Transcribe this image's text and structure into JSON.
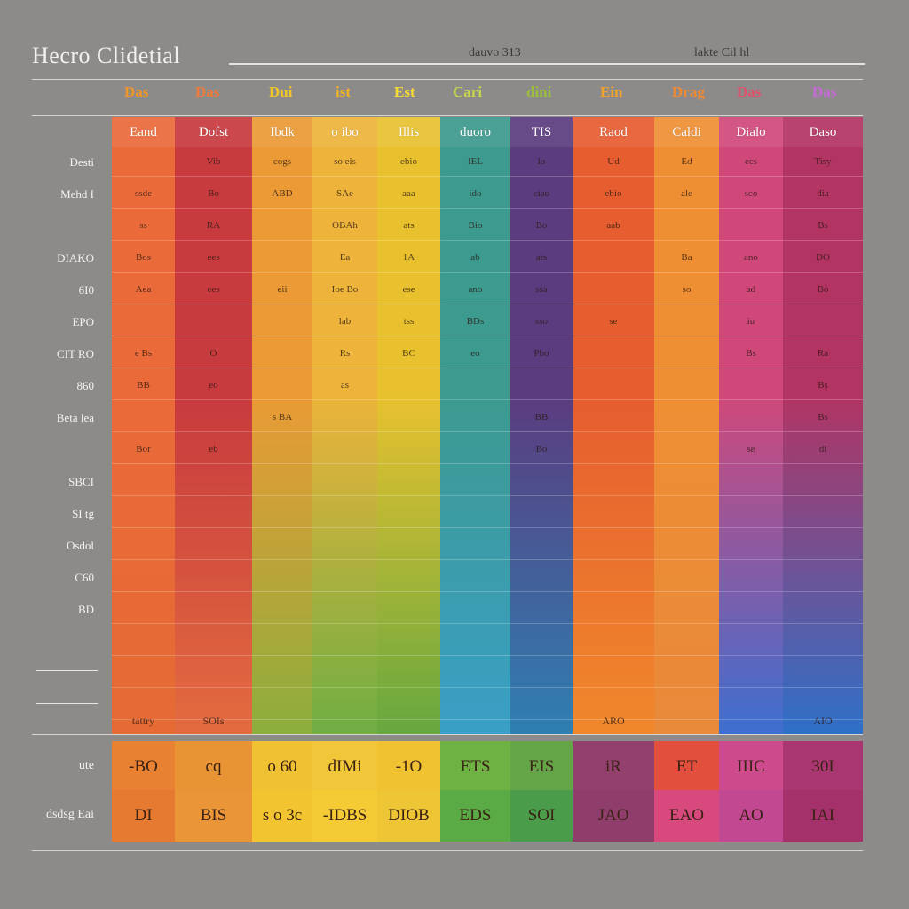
{
  "chart_data": {
    "type": "table",
    "title": "Hecro Clidetial",
    "subtitle_left": "dauvo 313",
    "subtitle_right": "lakte Cil hl",
    "top_labels": [
      {
        "text": "Das",
        "color": "#f0962a"
      },
      {
        "text": "Das",
        "color": "#f07a3a"
      },
      {
        "text": "Dui",
        "color": "#f3c52b"
      },
      {
        "text": "ist",
        "color": "#f0b228"
      },
      {
        "text": "Est",
        "color": "#f6d936"
      },
      {
        "text": "Cari",
        "color": "#c8d64a"
      },
      {
        "text": "dini",
        "color": "#9bbf3a"
      },
      {
        "text": "Ein",
        "color": "#f1a12e"
      },
      {
        "text": "Drag",
        "color": "#ef8a34"
      },
      {
        "text": "Das",
        "color": "#e0506a"
      },
      {
        "text": "Das",
        "color": "#c66ad8"
      }
    ],
    "columns": [
      {
        "label": "Eand",
        "color": "#ea6a3a",
        "color2": "#e56a33"
      },
      {
        "label": "Dofst",
        "color": "#c73a3e",
        "color2": "#e36b3f"
      },
      {
        "label": "Ibdk",
        "color": "#eb9a35",
        "color2": "#8cae3c"
      },
      {
        "label": "o ibo",
        "color": "#edb33a",
        "color2": "#6fae43"
      },
      {
        "label": "Illis",
        "color": "#e9c12f",
        "color2": "#66a83f"
      },
      {
        "label": "duoro",
        "color": "#3d9a8f",
        "color2": "#3a9fc6"
      },
      {
        "label": "TIS",
        "color": "#5b3c7f",
        "color2": "#2f7fb2"
      },
      {
        "label": "Raod",
        "color": "#e65d30",
        "color2": "#f0882b"
      },
      {
        "label": "Caldi",
        "color": "#ee8f34",
        "color2": "#e9893a"
      },
      {
        "label": "Dialo",
        "color": "#d0487a",
        "color2": "#3d6fd0"
      },
      {
        "label": "Daso",
        "color": "#b23462",
        "color2": "#2e70c8"
      }
    ],
    "row_labels": [
      "Desti",
      "Mehd I",
      "",
      "DIAKO",
      "6I0",
      "EPO",
      "CIT RO",
      "860",
      "Beta lea",
      "",
      "SBCI",
      "SI tg",
      "Osdol",
      "C60",
      "BD",
      "",
      "",
      ""
    ],
    "cells": [
      [
        "",
        "Vib",
        "cogs",
        "so eis",
        "ebio",
        "IEL",
        "lo",
        "Ud",
        "Ed",
        "ecs",
        "Tisy"
      ],
      [
        "ssde",
        "Bo",
        "ABD",
        "SAe",
        "aaa",
        "ido",
        "ciao",
        "ebio",
        "ale",
        "sco",
        "dia"
      ],
      [
        "ss",
        "RA",
        "",
        "OBAh",
        "ats",
        "Bio",
        "Bo",
        "aab",
        "",
        "",
        "Bs"
      ],
      [
        "Bos",
        "ees",
        "",
        "Ea",
        "1A",
        "ab",
        "ats",
        "",
        "Ba",
        "ano",
        "DO"
      ],
      [
        "Aea",
        "ees",
        "eii",
        "Ioe Bo",
        "ese",
        "ano",
        "ssa",
        "",
        "so",
        "ad",
        "Bo"
      ],
      [
        "",
        "",
        "",
        "lab",
        "tss",
        "BDs",
        "sso",
        "se",
        "",
        "iu",
        ""
      ],
      [
        "e Bs",
        "O",
        "",
        "Rs",
        "BC",
        "eo",
        "Pbo",
        "",
        "",
        "Bs",
        "Ra"
      ],
      [
        "BB",
        "eo",
        "",
        "as",
        "",
        "",
        "",
        "",
        "",
        "",
        "Bs"
      ],
      [
        "",
        "",
        "s BA",
        "",
        "",
        "",
        "BB",
        "",
        "",
        "",
        "Bs"
      ],
      [
        "Bor",
        "eb",
        "",
        "",
        "",
        "",
        "Bo",
        "",
        "",
        "se",
        "di"
      ],
      [
        "",
        "",
        "",
        "",
        "",
        "",
        "",
        "",
        "",
        "",
        ""
      ],
      [
        "",
        "",
        "",
        "",
        "",
        "",
        "",
        "",
        "",
        "",
        ""
      ],
      [
        "",
        "",
        "",
        "",
        "",
        "",
        "",
        "",
        "",
        "",
        ""
      ],
      [
        "",
        "",
        "",
        "",
        "",
        "",
        "",
        "",
        "",
        "",
        ""
      ],
      [
        "",
        "",
        "",
        "",
        "",
        "",
        "",
        "",
        "",
        "",
        ""
      ],
      [
        "",
        "",
        "",
        "",
        "",
        "",
        "",
        "",
        "",
        "",
        ""
      ],
      [
        "",
        "",
        "",
        "",
        "",
        "",
        "",
        "",
        "",
        "",
        ""
      ],
      [
        "",
        "",
        "",
        "",
        "",
        "",
        "",
        "",
        "",
        "",
        ""
      ]
    ],
    "bottom_row": [
      "tattry",
      "SOIs",
      "",
      "",
      "",
      "",
      "",
      "ARO",
      "",
      "",
      "AIO"
    ],
    "summary_labels": [
      "ute",
      "dsdsg Eai"
    ],
    "summary": [
      [
        "-BO",
        "cq",
        "o 60",
        "dIMi",
        "-1O",
        "ETS",
        "EIS",
        "iR",
        "ET",
        "IIIC",
        "30I"
      ],
      [
        "DI",
        "BIS",
        "s o 3c",
        "-IDBS",
        "DIOB",
        "EDS",
        "SOI",
        "JAO",
        "EAO",
        "AO",
        "IAI"
      ]
    ],
    "summary_colors": [
      [
        "#e88132",
        "#e89434",
        "#f0c233",
        "#f1c638",
        "#f0c232",
        "#6db243",
        "#64a548",
        "#94406e",
        "#e34f3d",
        "#cd4b8c",
        "#a93670"
      ],
      [
        "#e67a30",
        "#ea9537",
        "#f1c430",
        "#f4cb35",
        "#eec534",
        "#5aaa45",
        "#4b9c4a",
        "#8f3e6b",
        "#d8497e",
        "#c24892",
        "#a4316a"
      ]
    ]
  }
}
